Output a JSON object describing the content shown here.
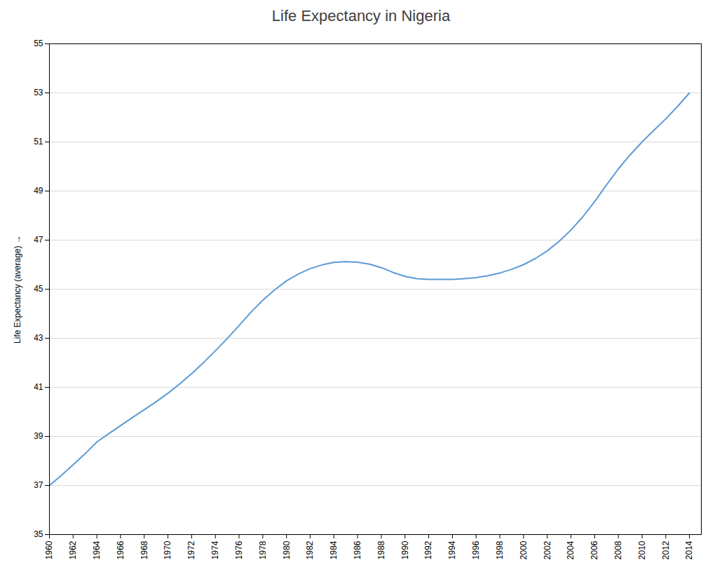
{
  "chart_data": {
    "type": "line",
    "title": "Life Expectancy in Nigeria",
    "y_label": "Life Expectancy (average)",
    "x": [
      1960,
      1961,
      1962,
      1963,
      1964,
      1965,
      1966,
      1967,
      1968,
      1969,
      1970,
      1971,
      1972,
      1973,
      1974,
      1975,
      1976,
      1977,
      1978,
      1979,
      1980,
      1981,
      1982,
      1983,
      1984,
      1985,
      1986,
      1987,
      1988,
      1989,
      1990,
      1991,
      1992,
      1993,
      1994,
      1995,
      1996,
      1997,
      1998,
      1999,
      2000,
      2001,
      2002,
      2003,
      2004,
      2005,
      2006,
      2007,
      2008,
      2009,
      2010,
      2011,
      2012,
      2013,
      2014
    ],
    "values": [
      37.0,
      37.41,
      37.84,
      38.29,
      38.77,
      39.11,
      39.44,
      39.77,
      40.09,
      40.41,
      40.76,
      41.14,
      41.56,
      42.01,
      42.49,
      42.99,
      43.52,
      44.06,
      44.55,
      44.97,
      45.34,
      45.62,
      45.84,
      45.99,
      46.09,
      46.12,
      46.1,
      46.02,
      45.88,
      45.68,
      45.52,
      45.43,
      45.4,
      45.4,
      45.4,
      45.43,
      45.47,
      45.55,
      45.66,
      45.81,
      46.0,
      46.25,
      46.56,
      46.95,
      47.41,
      47.95,
      48.57,
      49.25,
      49.9,
      50.48,
      51.0,
      51.48,
      51.94,
      52.45,
      53.0
    ],
    "color": "#5B9BD5",
    "xlim": [
      1960,
      2015
    ],
    "xticks": [
      1960,
      1962,
      1964,
      1966,
      1968,
      1970,
      1972,
      1974,
      1976,
      1978,
      1980,
      1982,
      1984,
      1986,
      1988,
      1990,
      1992,
      1994,
      1996,
      1998,
      2000,
      2002,
      2004,
      2006,
      2008,
      2010,
      2012,
      2014
    ],
    "ylim": [
      35,
      55
    ],
    "yticks": [
      35,
      37,
      39,
      41,
      43,
      45,
      47,
      49,
      51,
      53,
      55
    ],
    "grid": true
  }
}
